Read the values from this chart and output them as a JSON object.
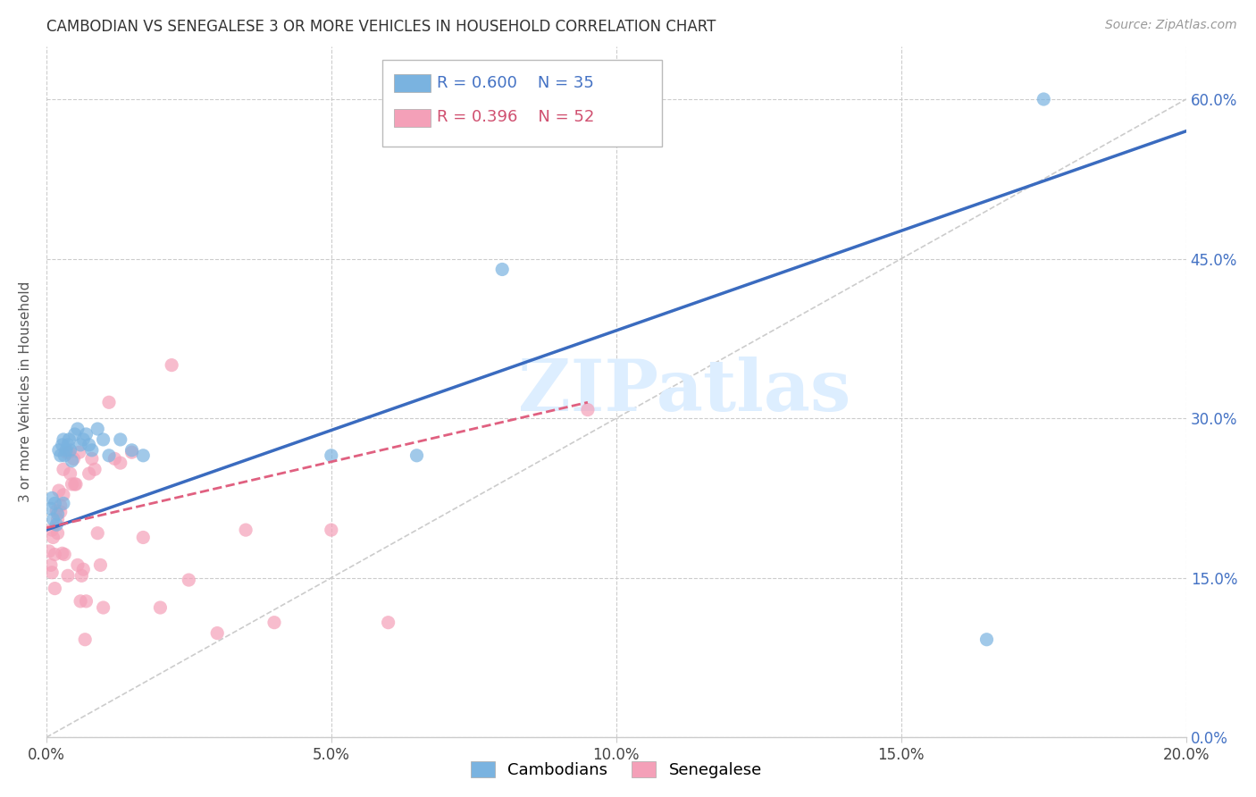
{
  "title": "CAMBODIAN VS SENEGALESE 3 OR MORE VEHICLES IN HOUSEHOLD CORRELATION CHART",
  "source": "Source: ZipAtlas.com",
  "ylabel": "3 or more Vehicles in Household",
  "xlim": [
    0.0,
    0.2
  ],
  "ylim": [
    0.0,
    0.65
  ],
  "cambodian_color": "#7ab3e0",
  "senegalese_color": "#f4a0b8",
  "trend_cambodian_color": "#3a6bbf",
  "trend_senegalese_color": "#e06080",
  "diagonal_color": "#cccccc",
  "watermark_color": "#ddeeff",
  "R_cambodian": 0.6,
  "N_cambodian": 35,
  "R_senegalese": 0.396,
  "N_senegalese": 52,
  "trend_cam_x0": 0.0,
  "trend_cam_y0": 0.195,
  "trend_cam_x1": 0.2,
  "trend_cam_y1": 0.57,
  "trend_sen_x0": 0.0,
  "trend_sen_y0": 0.197,
  "trend_sen_x1": 0.095,
  "trend_sen_y1": 0.315,
  "cambodian_x": [
    0.0008,
    0.001,
    0.0012,
    0.0015,
    0.0018,
    0.002,
    0.0022,
    0.0025,
    0.0028,
    0.003,
    0.003,
    0.0032,
    0.0035,
    0.0038,
    0.004,
    0.0042,
    0.0045,
    0.005,
    0.0055,
    0.006,
    0.0065,
    0.007,
    0.0075,
    0.008,
    0.009,
    0.01,
    0.011,
    0.013,
    0.015,
    0.017,
    0.05,
    0.065,
    0.08,
    0.165,
    0.175
  ],
  "cambodian_y": [
    0.215,
    0.225,
    0.205,
    0.22,
    0.2,
    0.21,
    0.27,
    0.265,
    0.275,
    0.28,
    0.22,
    0.265,
    0.27,
    0.275,
    0.28,
    0.27,
    0.26,
    0.285,
    0.29,
    0.275,
    0.28,
    0.285,
    0.275,
    0.27,
    0.29,
    0.28,
    0.265,
    0.28,
    0.27,
    0.265,
    0.265,
    0.265,
    0.44,
    0.092,
    0.6
  ],
  "senegalese_x": [
    0.0005,
    0.0008,
    0.001,
    0.001,
    0.0012,
    0.0015,
    0.0015,
    0.0018,
    0.002,
    0.002,
    0.0022,
    0.0025,
    0.0025,
    0.0028,
    0.003,
    0.003,
    0.0032,
    0.0035,
    0.0038,
    0.004,
    0.0042,
    0.0045,
    0.0048,
    0.005,
    0.0052,
    0.0055,
    0.0058,
    0.006,
    0.0062,
    0.0065,
    0.0068,
    0.007,
    0.0075,
    0.008,
    0.0085,
    0.009,
    0.0095,
    0.01,
    0.011,
    0.012,
    0.013,
    0.015,
    0.017,
    0.02,
    0.022,
    0.025,
    0.03,
    0.035,
    0.04,
    0.05,
    0.06,
    0.095
  ],
  "senegalese_y": [
    0.175,
    0.162,
    0.155,
    0.195,
    0.188,
    0.172,
    0.14,
    0.213,
    0.205,
    0.192,
    0.232,
    0.218,
    0.212,
    0.173,
    0.252,
    0.228,
    0.172,
    0.268,
    0.152,
    0.268,
    0.248,
    0.238,
    0.262,
    0.238,
    0.238,
    0.162,
    0.268,
    0.128,
    0.152,
    0.158,
    0.092,
    0.128,
    0.248,
    0.262,
    0.252,
    0.192,
    0.162,
    0.122,
    0.315,
    0.262,
    0.258,
    0.268,
    0.188,
    0.122,
    0.35,
    0.148,
    0.098,
    0.195,
    0.108,
    0.195,
    0.108,
    0.308
  ]
}
